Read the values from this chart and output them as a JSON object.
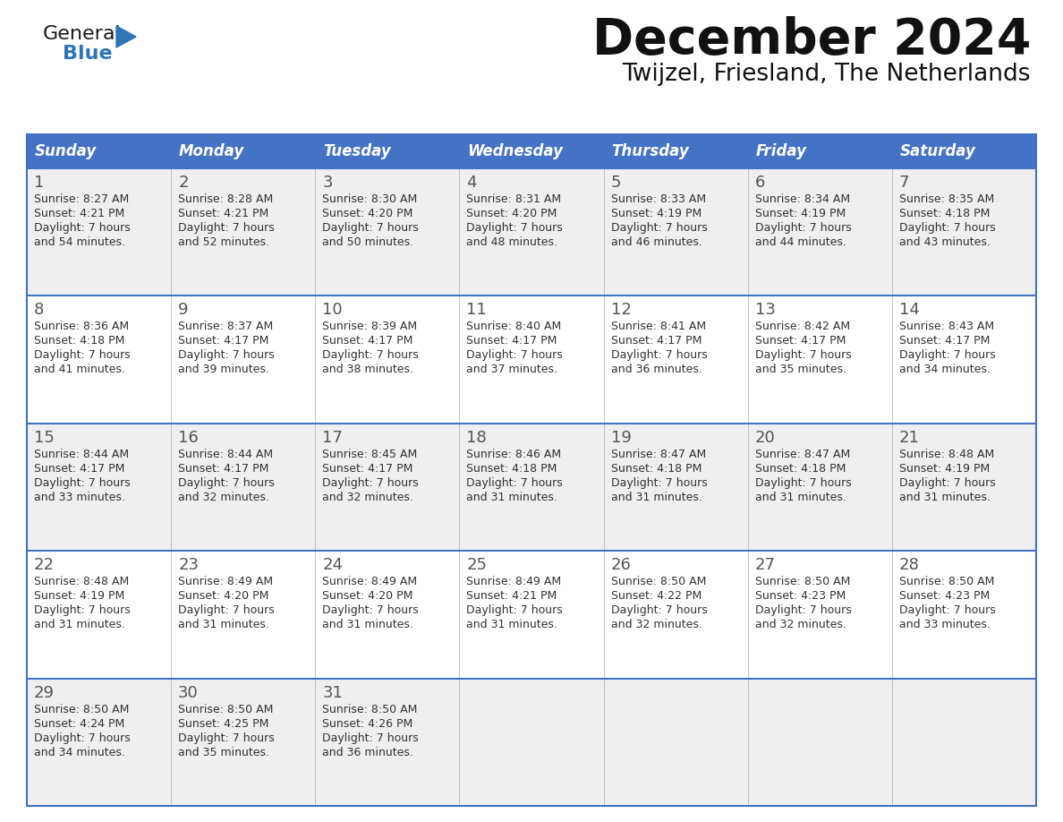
{
  "title": "December 2024",
  "subtitle": "Twijzel, Friesland, The Netherlands",
  "days_of_week": [
    "Sunday",
    "Monday",
    "Tuesday",
    "Wednesday",
    "Thursday",
    "Friday",
    "Saturday"
  ],
  "header_bg": "#4472C4",
  "header_text": "#FFFFFF",
  "row_bg_odd": "#EFEFEF",
  "row_bg_even": "#FFFFFF",
  "separator_color": "#4472C4",
  "day_number_color": "#555555",
  "text_color": "#333333",
  "calendar_data": [
    [
      {
        "day": 1,
        "sunrise": "8:27 AM",
        "sunset": "4:21 PM",
        "daylight": "7 hours and 54 minutes"
      },
      {
        "day": 2,
        "sunrise": "8:28 AM",
        "sunset": "4:21 PM",
        "daylight": "7 hours and 52 minutes"
      },
      {
        "day": 3,
        "sunrise": "8:30 AM",
        "sunset": "4:20 PM",
        "daylight": "7 hours and 50 minutes"
      },
      {
        "day": 4,
        "sunrise": "8:31 AM",
        "sunset": "4:20 PM",
        "daylight": "7 hours and 48 minutes"
      },
      {
        "day": 5,
        "sunrise": "8:33 AM",
        "sunset": "4:19 PM",
        "daylight": "7 hours and 46 minutes"
      },
      {
        "day": 6,
        "sunrise": "8:34 AM",
        "sunset": "4:19 PM",
        "daylight": "7 hours and 44 minutes"
      },
      {
        "day": 7,
        "sunrise": "8:35 AM",
        "sunset": "4:18 PM",
        "daylight": "7 hours and 43 minutes"
      }
    ],
    [
      {
        "day": 8,
        "sunrise": "8:36 AM",
        "sunset": "4:18 PM",
        "daylight": "7 hours and 41 minutes"
      },
      {
        "day": 9,
        "sunrise": "8:37 AM",
        "sunset": "4:17 PM",
        "daylight": "7 hours and 39 minutes"
      },
      {
        "day": 10,
        "sunrise": "8:39 AM",
        "sunset": "4:17 PM",
        "daylight": "7 hours and 38 minutes"
      },
      {
        "day": 11,
        "sunrise": "8:40 AM",
        "sunset": "4:17 PM",
        "daylight": "7 hours and 37 minutes"
      },
      {
        "day": 12,
        "sunrise": "8:41 AM",
        "sunset": "4:17 PM",
        "daylight": "7 hours and 36 minutes"
      },
      {
        "day": 13,
        "sunrise": "8:42 AM",
        "sunset": "4:17 PM",
        "daylight": "7 hours and 35 minutes"
      },
      {
        "day": 14,
        "sunrise": "8:43 AM",
        "sunset": "4:17 PM",
        "daylight": "7 hours and 34 minutes"
      }
    ],
    [
      {
        "day": 15,
        "sunrise": "8:44 AM",
        "sunset": "4:17 PM",
        "daylight": "7 hours and 33 minutes"
      },
      {
        "day": 16,
        "sunrise": "8:44 AM",
        "sunset": "4:17 PM",
        "daylight": "7 hours and 32 minutes"
      },
      {
        "day": 17,
        "sunrise": "8:45 AM",
        "sunset": "4:17 PM",
        "daylight": "7 hours and 32 minutes"
      },
      {
        "day": 18,
        "sunrise": "8:46 AM",
        "sunset": "4:18 PM",
        "daylight": "7 hours and 31 minutes"
      },
      {
        "day": 19,
        "sunrise": "8:47 AM",
        "sunset": "4:18 PM",
        "daylight": "7 hours and 31 minutes"
      },
      {
        "day": 20,
        "sunrise": "8:47 AM",
        "sunset": "4:18 PM",
        "daylight": "7 hours and 31 minutes"
      },
      {
        "day": 21,
        "sunrise": "8:48 AM",
        "sunset": "4:19 PM",
        "daylight": "7 hours and 31 minutes"
      }
    ],
    [
      {
        "day": 22,
        "sunrise": "8:48 AM",
        "sunset": "4:19 PM",
        "daylight": "7 hours and 31 minutes"
      },
      {
        "day": 23,
        "sunrise": "8:49 AM",
        "sunset": "4:20 PM",
        "daylight": "7 hours and 31 minutes"
      },
      {
        "day": 24,
        "sunrise": "8:49 AM",
        "sunset": "4:20 PM",
        "daylight": "7 hours and 31 minutes"
      },
      {
        "day": 25,
        "sunrise": "8:49 AM",
        "sunset": "4:21 PM",
        "daylight": "7 hours and 31 minutes"
      },
      {
        "day": 26,
        "sunrise": "8:50 AM",
        "sunset": "4:22 PM",
        "daylight": "7 hours and 32 minutes"
      },
      {
        "day": 27,
        "sunrise": "8:50 AM",
        "sunset": "4:23 PM",
        "daylight": "7 hours and 32 minutes"
      },
      {
        "day": 28,
        "sunrise": "8:50 AM",
        "sunset": "4:23 PM",
        "daylight": "7 hours and 33 minutes"
      }
    ],
    [
      {
        "day": 29,
        "sunrise": "8:50 AM",
        "sunset": "4:24 PM",
        "daylight": "7 hours and 34 minutes"
      },
      {
        "day": 30,
        "sunrise": "8:50 AM",
        "sunset": "4:25 PM",
        "daylight": "7 hours and 35 minutes"
      },
      {
        "day": 31,
        "sunrise": "8:50 AM",
        "sunset": "4:26 PM",
        "daylight": "7 hours and 36 minutes"
      },
      null,
      null,
      null,
      null
    ]
  ],
  "logo_text_general": "General",
  "logo_text_blue": "Blue",
  "logo_color_general": "#1a1a1a",
  "logo_color_blue": "#2E75B6",
  "logo_triangle_color": "#2E75B6"
}
